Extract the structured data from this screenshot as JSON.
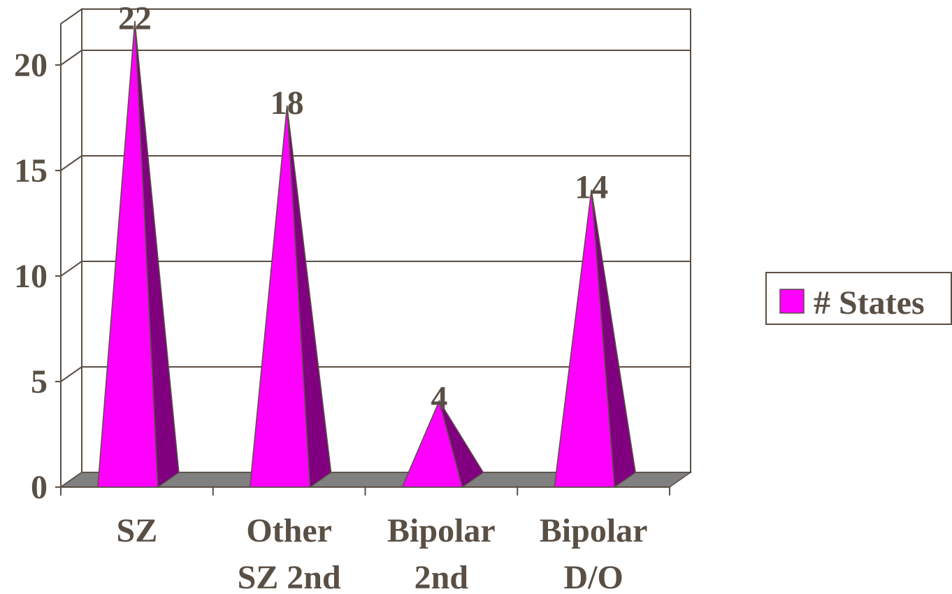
{
  "chart_data": {
    "type": "bar",
    "style": "3d-pyramid",
    "categories": [
      [
        "SZ"
      ],
      [
        "Other",
        "SZ 2nd"
      ],
      [
        "Bipolar",
        "2nd"
      ],
      [
        "Bipolar",
        "D/O"
      ]
    ],
    "series": [
      {
        "name": "# States",
        "values": [
          22,
          18,
          4,
          14
        ]
      }
    ],
    "data_labels": [
      "22",
      "18",
      "4",
      "14"
    ],
    "y_ticks": [
      "0",
      "5",
      "10",
      "15",
      "20"
    ],
    "ylim": [
      0,
      22.6
    ],
    "grid": true,
    "legend_position": "right",
    "colors": {
      "front": "#ff00ff",
      "side": "#800080",
      "floor": "#808080",
      "grid": "#5a4f45",
      "text": "#5a4f45"
    }
  }
}
